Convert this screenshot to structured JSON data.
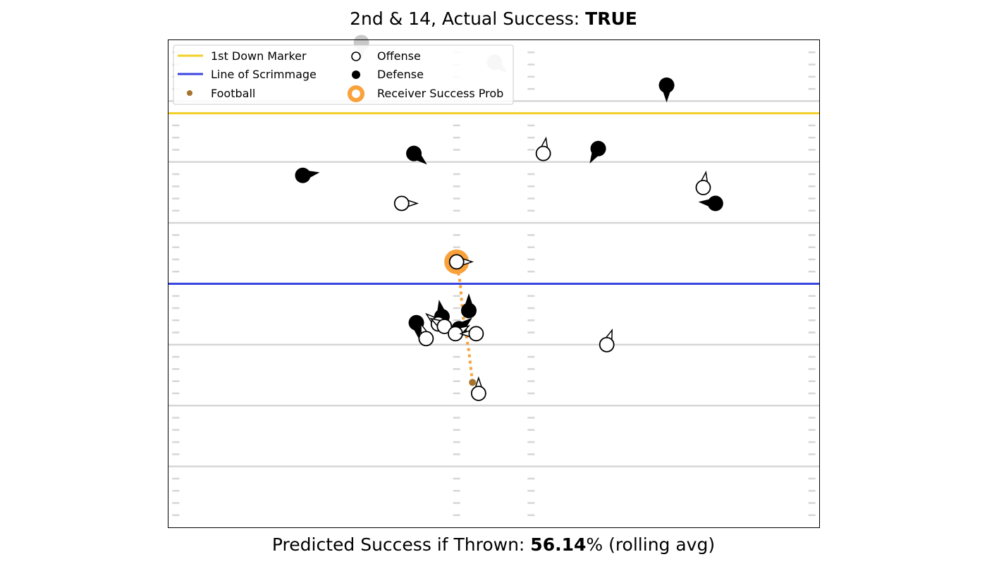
{
  "header": {
    "title_prefix": "2nd & 14, Actual Success: ",
    "title_value": "TRUE"
  },
  "footer": {
    "prefix": "Predicted Success if Thrown: ",
    "value": "56.14",
    "suffix": "% (rolling avg)"
  },
  "legend": {
    "placement": "top-left",
    "entries": [
      {
        "label": "1st Down Marker",
        "kind": "line",
        "color": "#f2d027"
      },
      {
        "label": "Line of Scrimmage",
        "kind": "line",
        "color": "#3a45e0"
      },
      {
        "label": "Football",
        "kind": "dot",
        "color": "#a4742e"
      },
      {
        "label": "Offense",
        "kind": "hollow",
        "color": "#000000"
      },
      {
        "label": "Defense",
        "kind": "filled",
        "color": "#000000"
      },
      {
        "label": "Receiver Success Prob",
        "kind": "ring",
        "color": "#f9a13a"
      }
    ]
  },
  "colors": {
    "first_down": "#f2d027",
    "scrimmage": "#3a45e0",
    "football": "#a4742e",
    "success_ring": "#f9a13a",
    "field_lines": "#d6d6d6",
    "faded_player": "#c8c8c8"
  },
  "chart_data": {
    "type": "scatter",
    "xlim": [
      0,
      53.3
    ],
    "ylim": [
      0,
      40
    ],
    "grid": false,
    "yard_lines": [
      5,
      10,
      15,
      20,
      25,
      30,
      35
    ],
    "first_down_line": 34,
    "line_of_scrimmage": 20,
    "football": {
      "x": 24.9,
      "y": 11.9
    },
    "success_ring_player": {
      "x": 23.6,
      "y": 21.8
    },
    "ball_path": [
      [
        24.9,
        11.9
      ],
      [
        24.6,
        14.5
      ],
      [
        24.1,
        17.5
      ],
      [
        23.9,
        20.0
      ],
      [
        23.6,
        21.8
      ]
    ],
    "offense": [
      {
        "x": 23.6,
        "y": 21.8,
        "dir": 0
      },
      {
        "x": 19.1,
        "y": 26.6,
        "dir": 0
      },
      {
        "x": 30.7,
        "y": 30.7,
        "dir": 80
      },
      {
        "x": 43.8,
        "y": 27.9,
        "dir": 80
      },
      {
        "x": 35.9,
        "y": 15.0,
        "dir": 70
      },
      {
        "x": 22.1,
        "y": 16.7,
        "dir": 140
      },
      {
        "x": 22.6,
        "y": 16.5,
        "dir": 150
      },
      {
        "x": 23.5,
        "y": 15.9,
        "dir": 30
      },
      {
        "x": 25.2,
        "y": 15.9,
        "dir": 180
      },
      {
        "x": 21.1,
        "y": 15.5,
        "dir": 110
      },
      {
        "x": 25.4,
        "y": 11.0,
        "dir": 90
      }
    ],
    "defense": [
      {
        "x": 40.8,
        "y": 36.3,
        "dir": -90
      },
      {
        "x": 35.2,
        "y": 31.1,
        "dir": -120
      },
      {
        "x": 20.1,
        "y": 30.7,
        "dir": -40
      },
      {
        "x": 11.0,
        "y": 28.9,
        "dir": 10
      },
      {
        "x": 44.8,
        "y": 26.6,
        "dir": 175
      },
      {
        "x": 22.4,
        "y": 17.3,
        "dir": 100
      },
      {
        "x": 24.6,
        "y": 17.8,
        "dir": 90
      },
      {
        "x": 20.3,
        "y": 16.8,
        "dir": -80
      },
      {
        "x": 23.8,
        "y": 16.3,
        "dir": 40
      }
    ],
    "faded": [
      {
        "x": 15.8,
        "y": 39.8,
        "dir": -90
      },
      {
        "x": 26.7,
        "y": 38.2,
        "dir": -40
      }
    ]
  }
}
